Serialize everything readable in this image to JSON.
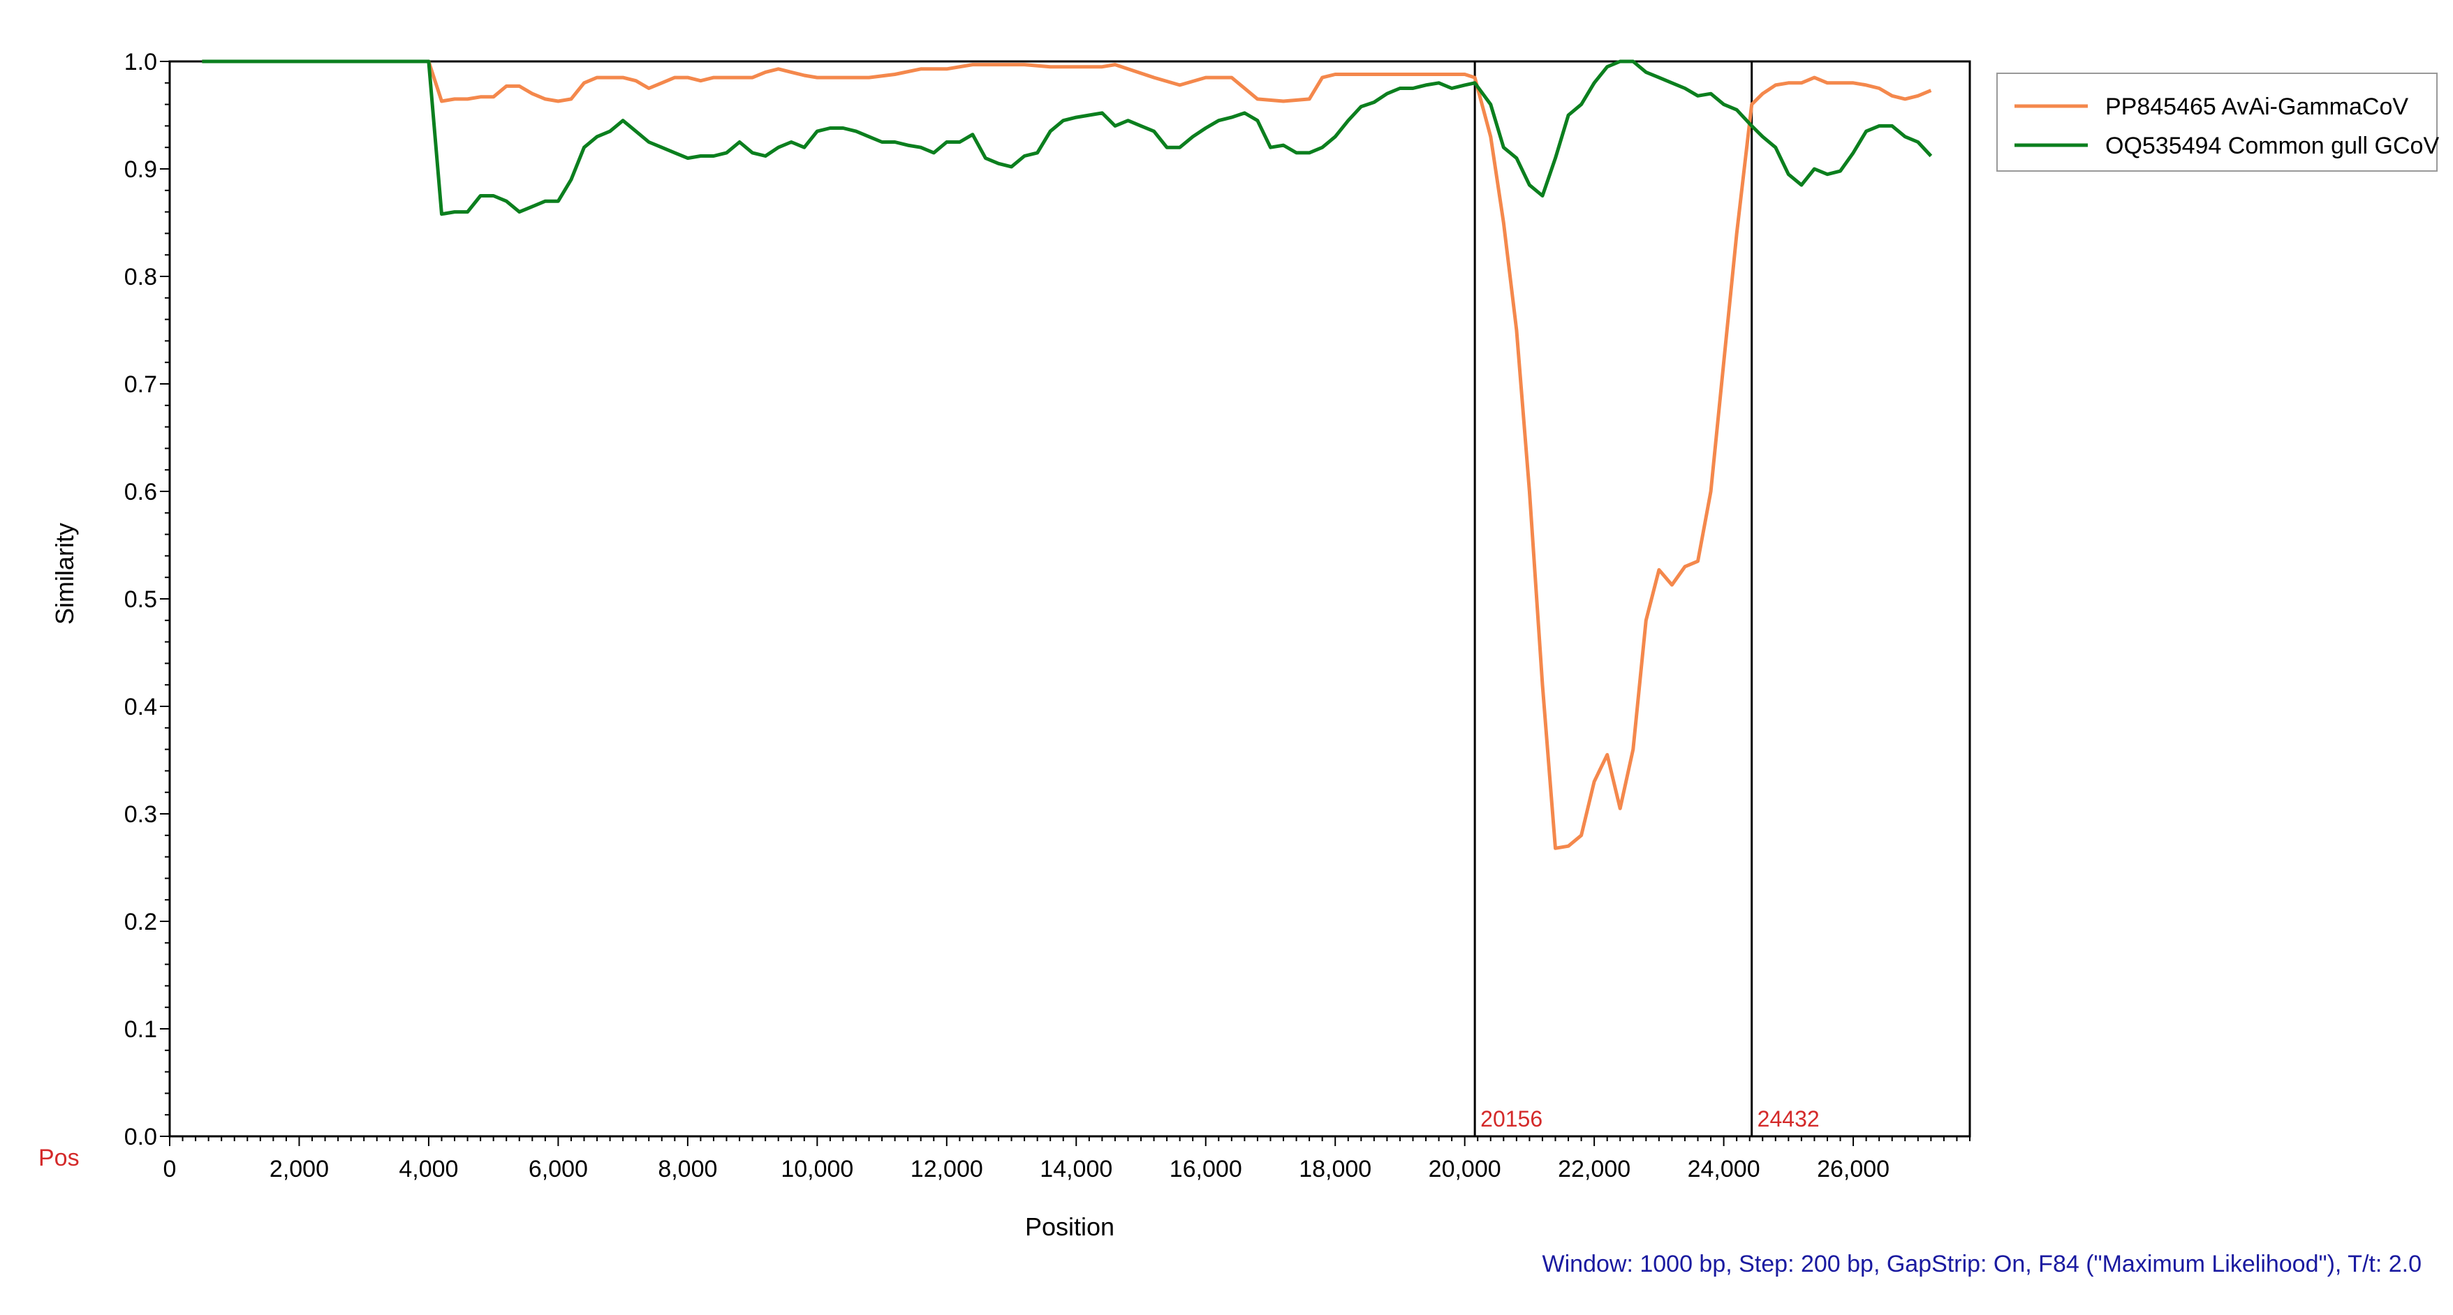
{
  "chart_data": {
    "type": "line",
    "xlabel": "Position",
    "ylabel": "Similarity",
    "xlim": [
      0,
      27800
    ],
    "ylim": [
      0.0,
      1.0
    ],
    "x_ticks": [
      0,
      2000,
      4000,
      6000,
      8000,
      10000,
      12000,
      14000,
      16000,
      18000,
      20000,
      22000,
      24000,
      26000
    ],
    "x_tick_labels": [
      "0",
      "2,000",
      "4,000",
      "6,000",
      "8,000",
      "10,000",
      "12,000",
      "14,000",
      "16,000",
      "18,000",
      "20,000",
      "22,000",
      "24,000",
      "26,000"
    ],
    "y_ticks": [
      0.0,
      0.1,
      0.2,
      0.3,
      0.4,
      0.5,
      0.6,
      0.7,
      0.8,
      0.9,
      1.0
    ],
    "y_tick_labels": [
      "0.0",
      "0.1",
      "0.2",
      "0.3",
      "0.4",
      "0.5",
      "0.6",
      "0.7",
      "0.8",
      "0.9",
      "1.0"
    ],
    "grid": false,
    "legend_position": "top-right-outside",
    "pos_label": "Pos",
    "breakpoints": [
      {
        "x": 20156,
        "label": "20156"
      },
      {
        "x": 24432,
        "label": "24432"
      }
    ],
    "footer": "Window: 1000 bp, Step: 200 bp, GapStrip: On, F84 (\"Maximum Likelihood\"), T/t: 2.0",
    "series": [
      {
        "name": "PP845465 AvAi-GammaCoV",
        "color": "#f4884c",
        "x": [
          500,
          4000,
          4200,
          4400,
          4600,
          4800,
          5000,
          5200,
          5400,
          5600,
          5800,
          6000,
          6200,
          6400,
          6600,
          6800,
          7000,
          7200,
          7400,
          7600,
          7800,
          8000,
          8200,
          8400,
          8600,
          8800,
          9000,
          9200,
          9400,
          9600,
          9800,
          10000,
          10400,
          10800,
          11200,
          11600,
          12000,
          12400,
          12800,
          13200,
          13600,
          14000,
          14400,
          14600,
          14800,
          15200,
          15600,
          16000,
          16400,
          16800,
          17200,
          17600,
          17800,
          18000,
          18400,
          18800,
          19200,
          19600,
          20000,
          20156,
          20400,
          20600,
          20800,
          21000,
          21200,
          21400,
          21600,
          21800,
          22000,
          22200,
          22400,
          22600,
          22800,
          23000,
          23200,
          23400,
          23600,
          23800,
          24000,
          24200,
          24432,
          24600,
          24800,
          25000,
          25200,
          25400,
          25600,
          25800,
          26000,
          26200,
          26400,
          26600,
          26800,
          27000,
          27200
        ],
        "values": [
          1.0,
          1.0,
          0.963,
          0.965,
          0.965,
          0.967,
          0.967,
          0.977,
          0.977,
          0.97,
          0.965,
          0.963,
          0.965,
          0.98,
          0.985,
          0.985,
          0.985,
          0.982,
          0.975,
          0.98,
          0.985,
          0.985,
          0.982,
          0.985,
          0.985,
          0.985,
          0.985,
          0.99,
          0.993,
          0.99,
          0.987,
          0.985,
          0.985,
          0.985,
          0.988,
          0.993,
          0.993,
          0.997,
          0.997,
          0.997,
          0.995,
          0.995,
          0.995,
          0.997,
          0.993,
          0.985,
          0.978,
          0.985,
          0.985,
          0.965,
          0.963,
          0.965,
          0.985,
          0.988,
          0.988,
          0.988,
          0.988,
          0.988,
          0.988,
          0.985,
          0.93,
          0.85,
          0.75,
          0.6,
          0.42,
          0.268,
          0.27,
          0.28,
          0.33,
          0.355,
          0.305,
          0.36,
          0.48,
          0.527,
          0.513,
          0.53,
          0.535,
          0.6,
          0.72,
          0.84,
          0.96,
          0.97,
          0.978,
          0.98,
          0.98,
          0.985,
          0.98,
          0.98,
          0.98,
          0.978,
          0.975,
          0.968,
          0.965,
          0.968,
          0.973
        ]
      },
      {
        "name": "OQ535494 Common gull GCoV",
        "color": "#0b7f1e",
        "x": [
          500,
          4000,
          4200,
          4400,
          4600,
          4800,
          5000,
          5200,
          5400,
          5600,
          5800,
          6000,
          6200,
          6400,
          6600,
          6800,
          7000,
          7200,
          7400,
          7600,
          7800,
          8000,
          8200,
          8400,
          8600,
          8800,
          9000,
          9200,
          9400,
          9600,
          9800,
          10000,
          10200,
          10400,
          10600,
          10800,
          11000,
          11200,
          11400,
          11600,
          11800,
          12000,
          12200,
          12400,
          12600,
          12800,
          13000,
          13200,
          13400,
          13600,
          13800,
          14000,
          14200,
          14400,
          14600,
          14800,
          15000,
          15200,
          15400,
          15600,
          15800,
          16000,
          16200,
          16400,
          16600,
          16800,
          17000,
          17200,
          17400,
          17600,
          17800,
          18000,
          18200,
          18400,
          18600,
          18800,
          19000,
          19200,
          19400,
          19600,
          19800,
          20000,
          20156,
          20400,
          20600,
          20800,
          21000,
          21200,
          21400,
          21600,
          21800,
          22000,
          22200,
          22400,
          22600,
          22800,
          23000,
          23200,
          23400,
          23600,
          23800,
          24000,
          24200,
          24432,
          24600,
          24800,
          25000,
          25200,
          25400,
          25600,
          25800,
          26000,
          26200,
          26400,
          26600,
          26800,
          27000,
          27200
        ],
        "values": [
          1.0,
          1.0,
          0.858,
          0.86,
          0.86,
          0.875,
          0.875,
          0.87,
          0.86,
          0.865,
          0.87,
          0.87,
          0.89,
          0.92,
          0.93,
          0.935,
          0.945,
          0.935,
          0.925,
          0.92,
          0.915,
          0.91,
          0.912,
          0.912,
          0.915,
          0.925,
          0.915,
          0.912,
          0.92,
          0.925,
          0.92,
          0.935,
          0.938,
          0.938,
          0.935,
          0.93,
          0.925,
          0.925,
          0.922,
          0.92,
          0.915,
          0.925,
          0.925,
          0.932,
          0.91,
          0.905,
          0.902,
          0.912,
          0.915,
          0.935,
          0.945,
          0.948,
          0.95,
          0.952,
          0.94,
          0.945,
          0.94,
          0.935,
          0.92,
          0.92,
          0.93,
          0.938,
          0.945,
          0.948,
          0.952,
          0.945,
          0.92,
          0.922,
          0.915,
          0.915,
          0.92,
          0.93,
          0.945,
          0.958,
          0.962,
          0.97,
          0.975,
          0.975,
          0.978,
          0.98,
          0.975,
          0.978,
          0.98,
          0.96,
          0.92,
          0.91,
          0.885,
          0.875,
          0.91,
          0.95,
          0.96,
          0.98,
          0.995,
          1.0,
          1.0,
          0.99,
          0.985,
          0.98,
          0.975,
          0.968,
          0.97,
          0.96,
          0.955,
          0.94,
          0.93,
          0.92,
          0.895,
          0.885,
          0.9,
          0.895,
          0.898,
          0.915,
          0.935,
          0.94,
          0.94,
          0.93,
          0.925,
          0.912
        ]
      }
    ]
  }
}
